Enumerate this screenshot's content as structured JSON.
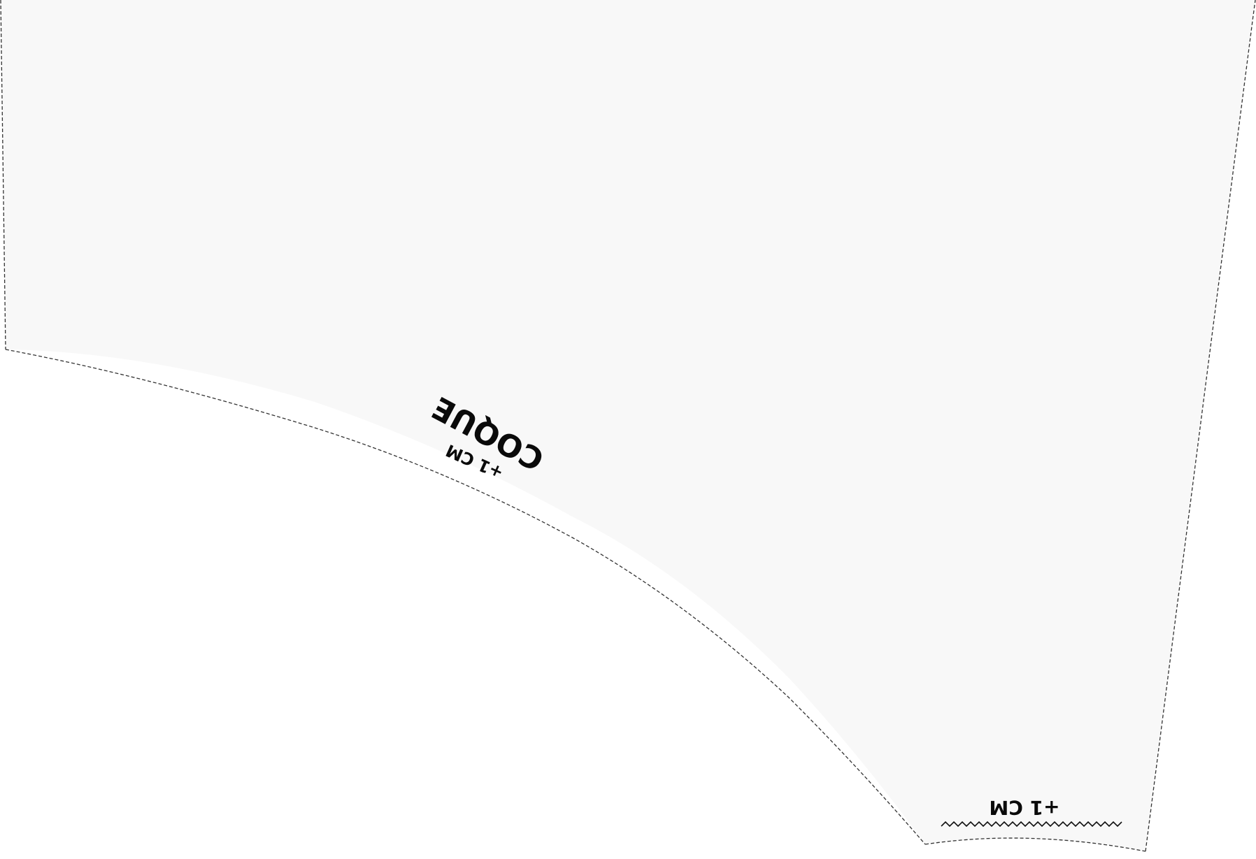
{
  "piece": {
    "name": "COQUE",
    "seam_allowance_curve": "+1 CM",
    "seam_allowance_hem": "+1 CM",
    "fill_color": "#f8f8f8",
    "line_color": "#333333"
  }
}
